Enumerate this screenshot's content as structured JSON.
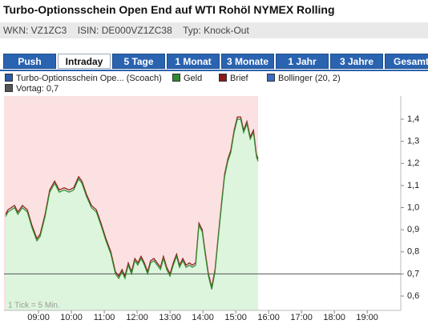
{
  "header": {
    "title": "Turbo-Optionsschein Open End auf WTI Rohöl NYMEX Rolling",
    "wkn": "WKN: VZ1ZC3",
    "isin": "ISIN: DE000VZ1ZC38",
    "typ": "Typ: Knock-Out"
  },
  "tabs": [
    "Push",
    "Intraday",
    "5 Tage",
    "1 Monat",
    "3 Monate",
    "1 Jahr",
    "3 Jahre",
    "Gesamt"
  ],
  "active_tab": 1,
  "chart_data": {
    "type": "line",
    "legend": [
      {
        "name": "Turbo-Optionsschein Ope... (Scoach)",
        "color": "#2b5ba8"
      },
      {
        "name": "Geld",
        "color": "#2e8b2e"
      },
      {
        "name": "Brief",
        "color": "#8b1a1a"
      },
      {
        "name": "Bollinger (20, 2)",
        "color": "#3a6bbf"
      }
    ],
    "reference_line": {
      "value": 0.7,
      "label": "Vortag: 0,7",
      "color": "#555555"
    },
    "note": "1 Tick = 5 Min.",
    "x": [
      8.0,
      8.07,
      8.27,
      8.37,
      8.51,
      8.66,
      8.8,
      8.95,
      9.05,
      9.2,
      9.34,
      9.49,
      9.63,
      9.78,
      9.93,
      10.07,
      10.22,
      10.32,
      10.46,
      10.61,
      10.76,
      10.9,
      11.05,
      11.2,
      11.34,
      11.44,
      11.54,
      11.63,
      11.73,
      11.83,
      11.93,
      12.02,
      12.12,
      12.22,
      12.32,
      12.41,
      12.51,
      12.61,
      12.71,
      12.8,
      12.9,
      13.0,
      13.1,
      13.2,
      13.29,
      13.39,
      13.49,
      13.59,
      13.68,
      13.78,
      13.88,
      13.98,
      14.07,
      14.17,
      14.27,
      14.37,
      14.46,
      14.56,
      14.66,
      14.76,
      14.85,
      14.95,
      15.05,
      15.15,
      15.24,
      15.34,
      15.44,
      15.54,
      15.63,
      15.68
    ],
    "series": [
      {
        "color": "#8b1a1a",
        "values": [
          0.97,
          0.99,
          1.01,
          0.98,
          1.01,
          0.99,
          0.92,
          0.86,
          0.88,
          0.97,
          1.08,
          1.12,
          1.08,
          1.09,
          1.08,
          1.09,
          1.14,
          1.12,
          1.06,
          1.01,
          0.99,
          0.93,
          0.86,
          0.8,
          0.71,
          0.69,
          0.72,
          0.69,
          0.75,
          0.71,
          0.77,
          0.75,
          0.78,
          0.75,
          0.71,
          0.76,
          0.77,
          0.75,
          0.73,
          0.78,
          0.73,
          0.7,
          0.75,
          0.79,
          0.74,
          0.77,
          0.74,
          0.75,
          0.74,
          0.75,
          0.93,
          0.9,
          0.8,
          0.7,
          0.64,
          0.72,
          0.86,
          1.01,
          1.15,
          1.22,
          1.26,
          1.35,
          1.41,
          1.41,
          1.35,
          1.39,
          1.32,
          1.35,
          1.24,
          1.22
        ]
      },
      {
        "color": "#2e8b2e",
        "fill": "#dcf5dc",
        "values": [
          0.96,
          0.98,
          1.0,
          0.97,
          1.0,
          0.98,
          0.91,
          0.85,
          0.87,
          0.96,
          1.07,
          1.11,
          1.07,
          1.08,
          1.07,
          1.08,
          1.13,
          1.11,
          1.05,
          1.0,
          0.98,
          0.92,
          0.85,
          0.79,
          0.7,
          0.68,
          0.71,
          0.68,
          0.74,
          0.7,
          0.76,
          0.74,
          0.77,
          0.74,
          0.7,
          0.75,
          0.76,
          0.74,
          0.72,
          0.77,
          0.72,
          0.69,
          0.74,
          0.78,
          0.73,
          0.76,
          0.73,
          0.74,
          0.73,
          0.74,
          0.92,
          0.89,
          0.79,
          0.69,
          0.63,
          0.71,
          0.85,
          1.0,
          1.14,
          1.21,
          1.25,
          1.34,
          1.4,
          1.4,
          1.34,
          1.38,
          1.31,
          1.34,
          1.23,
          1.21
        ]
      }
    ],
    "background": "#fbe1e1",
    "xlim": [
      7.95,
      20.02
    ],
    "xticks": [
      {
        "value": 9,
        "label": "09:00"
      },
      {
        "value": 10,
        "label": "10:00"
      },
      {
        "value": 11,
        "label": "11:00"
      },
      {
        "value": 12,
        "label": "12:00"
      },
      {
        "value": 13,
        "label": "13:00"
      },
      {
        "value": 14,
        "label": "14:00"
      },
      {
        "value": 15,
        "label": "15:00"
      },
      {
        "value": 16,
        "label": "16:00"
      },
      {
        "value": 17,
        "label": "17:00"
      },
      {
        "value": 18,
        "label": "18:00"
      },
      {
        "value": 19,
        "label": "19:00"
      }
    ],
    "ylim": [
      0.535,
      1.505
    ],
    "yticks": [
      {
        "value": 0.6,
        "label": "0,6"
      },
      {
        "value": 0.7,
        "label": "0,7"
      },
      {
        "value": 0.8,
        "label": "0,8"
      },
      {
        "value": 0.9,
        "label": "0,9"
      },
      {
        "value": 1.0,
        "label": "1,0"
      },
      {
        "value": 1.1,
        "label": "1,1"
      },
      {
        "value": 1.2,
        "label": "1,2"
      },
      {
        "value": 1.3,
        "label": "1,3"
      },
      {
        "value": 1.4,
        "label": "1,4"
      }
    ]
  }
}
